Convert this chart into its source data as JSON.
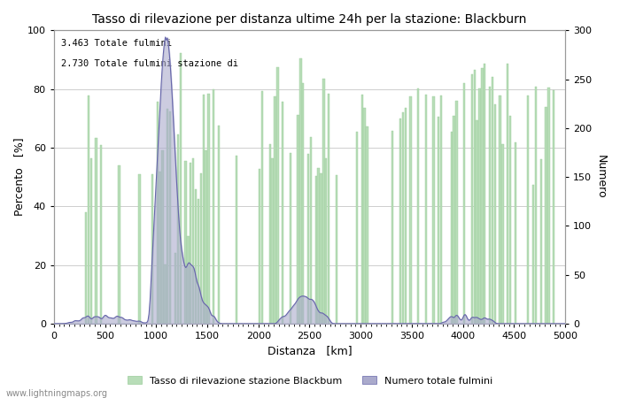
{
  "title": "Tasso di rilevazione per distanza ultime 24h per la stazione: Blackburn",
  "xlabel": "Distanza   [km]",
  "ylabel_left": "Percento   [%]",
  "ylabel_right": "Numero",
  "annotation_line1": "3.463 Totale fulmini",
  "annotation_line2": "2.730 Totale fulmini stazione di",
  "legend_label1": "Tasso di rilevazione stazione Blackbum",
  "legend_label2": "Numero totale fulmini",
  "bar_color": "#b8ddb8",
  "bar_edge_color": "#99cc99",
  "blue_fill_color": "#aaaacc",
  "blue_line_color": "#6666aa",
  "background_color": "#ffffff",
  "grid_color": "#bbbbbb",
  "x_min": 0,
  "x_max": 5000,
  "y_left_min": 0,
  "y_left_max": 100,
  "y_right_min": 0,
  "y_right_max": 300,
  "watermark": "www.lightningmaps.org",
  "x_ticks": [
    0,
    500,
    1000,
    1500,
    2000,
    2500,
    3000,
    3500,
    4000,
    4500,
    5000
  ],
  "y_left_ticks": [
    0,
    20,
    40,
    60,
    80,
    100
  ],
  "y_right_ticks": [
    0,
    50,
    100,
    150,
    200,
    250,
    300
  ]
}
